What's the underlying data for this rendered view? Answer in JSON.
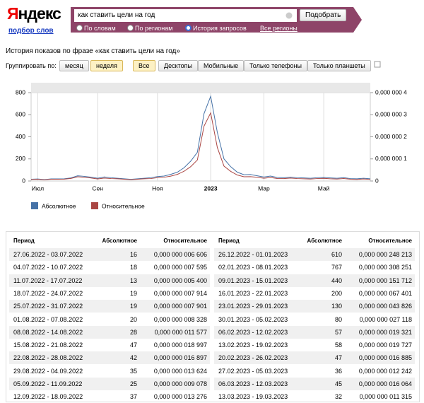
{
  "header": {
    "logo": "Яндекс",
    "sublink": "подбор слов",
    "query": "как ставить цели на год",
    "button": "Подобрать",
    "modes": [
      "По словам",
      "По регионам",
      "История запросов"
    ],
    "region": "Все регионы"
  },
  "page_title": "История показов по фразе «как ставить цели на год»",
  "group_label": "Группировать по:",
  "group_options": [
    "месяц",
    "неделя"
  ],
  "device_options": [
    "Все",
    "Десктопы",
    "Мобильные",
    "Только телефоны",
    "Только планшеты"
  ],
  "chart_data": {
    "type": "line",
    "legend": "bottom-left",
    "categories": [
      null,
      "Июл",
      null,
      null,
      null,
      null,
      null,
      null,
      null,
      null,
      "Сен",
      null,
      null,
      null,
      null,
      null,
      null,
      null,
      null,
      "Ноя",
      null,
      null,
      null,
      null,
      null,
      null,
      null,
      "2023",
      null,
      null,
      null,
      null,
      null,
      null,
      null,
      "Мар",
      null,
      null,
      null,
      null,
      null,
      null,
      null,
      null,
      "Май",
      null,
      null,
      null,
      null,
      null,
      null,
      null
    ],
    "ylim": [
      0,
      800
    ],
    "yticks": [
      0,
      200,
      400,
      600,
      800
    ],
    "y2lim": [
      0,
      4e-07
    ],
    "y2ticks": [
      0,
      {
        "value": 1e-07,
        "label": "0,000 000 1"
      },
      {
        "value": 2e-07,
        "label": "0,000 000 2"
      },
      {
        "value": 3e-07,
        "label": "0,000 000 3"
      },
      {
        "value": 4e-07,
        "label": "0,000 000 4"
      }
    ],
    "series": [
      {
        "name": "Абсолютное",
        "color": "#4572a7",
        "values": [
          16,
          18,
          13,
          19,
          19,
          20,
          28,
          47,
          42,
          35,
          25,
          37,
          30,
          25,
          20,
          15,
          20,
          25,
          30,
          40,
          45,
          60,
          80,
          120,
          180,
          260,
          610,
          767,
          440,
          200,
          130,
          80,
          57,
          58,
          47,
          36,
          45,
          32,
          30,
          35,
          30,
          28,
          25,
          30,
          32,
          28,
          25,
          30,
          22,
          20,
          25,
          20
        ]
      },
      {
        "name": "Относительное",
        "color": "#aa4643",
        "axis": "y2",
        "values": [
          6.606e-09,
          7.595e-09,
          5.4e-09,
          7.914e-09,
          7.901e-09,
          8.328e-09,
          1.1577e-08,
          1.8997e-08,
          1.6897e-08,
          1.3624e-08,
          9.078e-09,
          1.3276e-08,
          1.1e-08,
          1e-08,
          8e-09,
          6e-09,
          8e-09,
          1e-08,
          1.1e-08,
          1.5e-08,
          1.7e-08,
          2.2e-08,
          3e-08,
          4.4e-08,
          6.5e-08,
          9.5e-08,
          2.48213e-07,
          3.08251e-07,
          1.51712e-07,
          6.7401e-08,
          4.3826e-08,
          2.7118e-08,
          1.9321e-08,
          1.9727e-08,
          1.6885e-08,
          1.2242e-08,
          1.6064e-08,
          1.1315e-08,
          1.1e-08,
          1.3e-08,
          1.1e-08,
          1e-08,
          9e-09,
          1.1e-08,
          1.2e-08,
          1e-08,
          9e-09,
          1.1e-08,
          8e-09,
          7e-09,
          9e-09,
          7e-09
        ]
      }
    ]
  },
  "table": {
    "headers": [
      "Период",
      "Абсолютное",
      "Относительное"
    ],
    "left": [
      [
        "27.06.2022 - 03.07.2022",
        "16",
        "0,000 000 006 606"
      ],
      [
        "04.07.2022 - 10.07.2022",
        "18",
        "0,000 000 007 595"
      ],
      [
        "11.07.2022 - 17.07.2022",
        "13",
        "0,000 000 005 400"
      ],
      [
        "18.07.2022 - 24.07.2022",
        "19",
        "0,000 000 007 914"
      ],
      [
        "25.07.2022 - 31.07.2022",
        "19",
        "0,000 000 007 901"
      ],
      [
        "01.08.2022 - 07.08.2022",
        "20",
        "0,000 000 008 328"
      ],
      [
        "08.08.2022 - 14.08.2022",
        "28",
        "0,000 000 011 577"
      ],
      [
        "15.08.2022 - 21.08.2022",
        "47",
        "0,000 000 018 997"
      ],
      [
        "22.08.2022 - 28.08.2022",
        "42",
        "0,000 000 016 897"
      ],
      [
        "29.08.2022 - 04.09.2022",
        "35",
        "0,000 000 013 624"
      ],
      [
        "05.09.2022 - 11.09.2022",
        "25",
        "0,000 000 009 078"
      ],
      [
        "12.09.2022 - 18.09.2022",
        "37",
        "0,000 000 013 276"
      ]
    ],
    "right": [
      [
        "26.12.2022 - 01.01.2023",
        "610",
        "0,000 000 248 213"
      ],
      [
        "02.01.2023 - 08.01.2023",
        "767",
        "0,000 000 308 251"
      ],
      [
        "09.01.2023 - 15.01.2023",
        "440",
        "0,000 000 151 712"
      ],
      [
        "16.01.2023 - 22.01.2023",
        "200",
        "0,000 000 067 401"
      ],
      [
        "23.01.2023 - 29.01.2023",
        "130",
        "0,000 000 043 826"
      ],
      [
        "30.01.2023 - 05.02.2023",
        "80",
        "0,000 000 027 118"
      ],
      [
        "06.02.2023 - 12.02.2023",
        "57",
        "0,000 000 019 321"
      ],
      [
        "13.02.2023 - 19.02.2023",
        "58",
        "0,000 000 019 727"
      ],
      [
        "20.02.2023 - 26.02.2023",
        "47",
        "0,000 000 016 885"
      ],
      [
        "27.02.2023 - 05.03.2023",
        "36",
        "0,000 000 012 242"
      ],
      [
        "06.03.2023 - 12.03.2023",
        "45",
        "0,000 000 016 064"
      ],
      [
        "13.03.2023 - 19.03.2023",
        "32",
        "0,000 000 011 315"
      ]
    ]
  }
}
